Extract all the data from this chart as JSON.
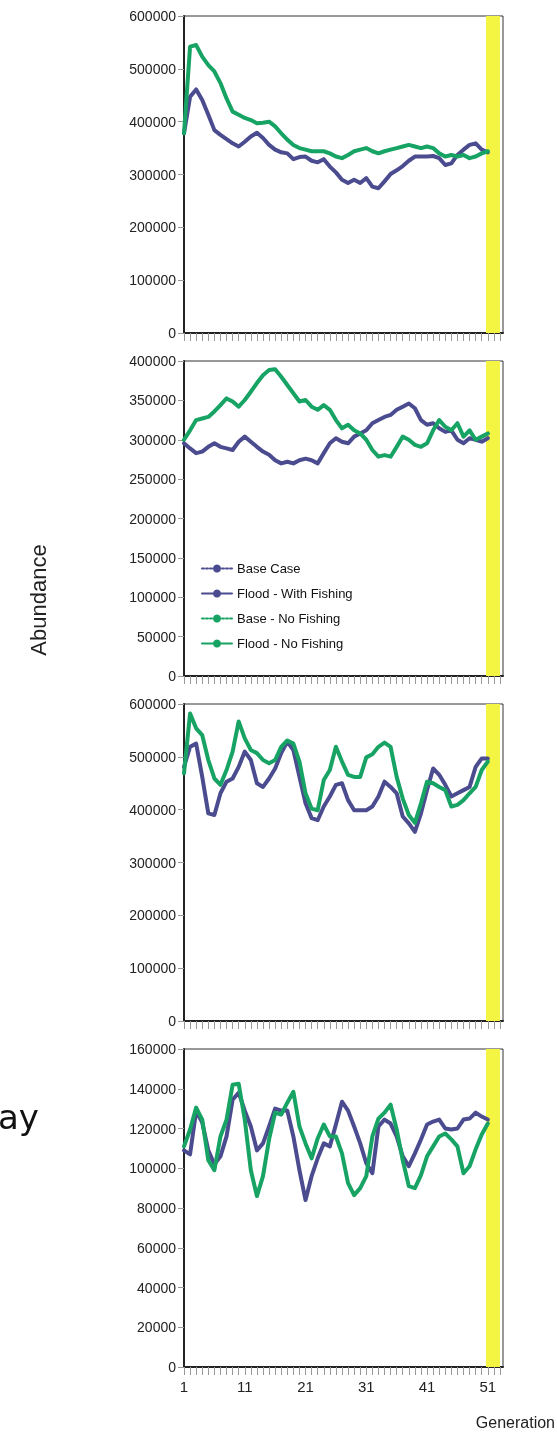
{
  "chart_data": [
    {
      "type": "line",
      "x": [
        1,
        2,
        3,
        4,
        5,
        6,
        7,
        8,
        9,
        10,
        11,
        12,
        13,
        14,
        15,
        16,
        17,
        18,
        19,
        20,
        21,
        22,
        23,
        24,
        25,
        26,
        27,
        28,
        29,
        30,
        31,
        32,
        33,
        34,
        35,
        36,
        37,
        38,
        39,
        40,
        41,
        42,
        43,
        44,
        45,
        46,
        47,
        48,
        49,
        50,
        51
      ],
      "series": [
        {
          "color": "#4b4b8f",
          "line_style": "solid",
          "values": [
            378000,
            447000,
            461000,
            441000,
            413000,
            384000,
            375000,
            367000,
            359000,
            353000,
            362000,
            372000,
            379000,
            369000,
            356000,
            347000,
            342000,
            340000,
            329000,
            333000,
            334000,
            326000,
            323000,
            329000,
            315000,
            304000,
            290000,
            284000,
            290000,
            284000,
            293000,
            277000,
            274000,
            287000,
            301000,
            308000,
            316000,
            326000,
            334000,
            334000,
            334000,
            335000,
            331000,
            318000,
            321000,
            337000,
            347000,
            356000,
            359000,
            347000,
            342000
          ]
        },
        {
          "color": "#17a363",
          "line_style": "solid",
          "values": [
            378000,
            542000,
            545000,
            523000,
            507000,
            495000,
            473000,
            444000,
            419000,
            413000,
            407000,
            403000,
            397000,
            398000,
            400000,
            391000,
            378000,
            366000,
            356000,
            350000,
            347000,
            344000,
            344000,
            344000,
            340000,
            334000,
            331000,
            337000,
            344000,
            347000,
            350000,
            344000,
            340000,
            344000,
            347000,
            350000,
            353000,
            356000,
            353000,
            350000,
            353000,
            350000,
            340000,
            334000,
            337000,
            334000,
            337000,
            331000,
            334000,
            340000,
            344000
          ]
        }
      ],
      "xlim": [
        1,
        53.5
      ],
      "xticks": [
        1,
        {
          "value": 2,
          "label": null
        },
        {
          "value": 3,
          "label": null
        },
        {
          "value": 4,
          "label": null
        },
        {
          "value": 5,
          "label": null
        },
        {
          "value": 6,
          "label": null
        },
        {
          "value": 7,
          "label": null
        },
        {
          "value": 8,
          "label": null
        },
        {
          "value": 9,
          "label": null
        },
        {
          "value": 10,
          "label": null
        },
        11,
        {
          "value": 12,
          "label": null
        },
        {
          "value": 13,
          "label": null
        },
        {
          "value": 14,
          "label": null
        },
        {
          "value": 15,
          "label": null
        },
        {
          "value": 16,
          "label": null
        },
        {
          "value": 17,
          "label": null
        },
        {
          "value": 18,
          "label": null
        },
        {
          "value": 19,
          "label": null
        },
        {
          "value": 20,
          "label": null
        },
        21,
        {
          "value": 22,
          "label": null
        },
        {
          "value": 23,
          "label": null
        },
        {
          "value": 24,
          "label": null
        },
        {
          "value": 25,
          "label": null
        },
        {
          "value": 26,
          "label": null
        },
        {
          "value": 27,
          "label": null
        },
        {
          "value": 28,
          "label": null
        },
        {
          "value": 29,
          "label": null
        },
        {
          "value": 30,
          "label": null
        },
        31,
        {
          "value": 32,
          "label": null
        },
        {
          "value": 33,
          "label": null
        },
        {
          "value": 34,
          "label": null
        },
        {
          "value": 35,
          "label": null
        },
        {
          "value": 36,
          "label": null
        },
        {
          "value": 37,
          "label": null
        },
        {
          "value": 38,
          "label": null
        },
        {
          "value": 39,
          "label": null
        },
        {
          "value": 40,
          "label": null
        },
        41,
        {
          "value": 42,
          "label": null
        },
        {
          "value": 43,
          "label": null
        },
        {
          "value": 44,
          "label": null
        },
        {
          "value": 45,
          "label": null
        },
        {
          "value": 46,
          "label": null
        },
        {
          "value": 47,
          "label": null
        },
        {
          "value": 48,
          "label": null
        },
        {
          "value": 49,
          "label": null
        },
        {
          "value": 50,
          "label": null
        },
        51,
        {
          "value": 52,
          "label": null
        },
        {
          "value": 53,
          "label": null
        }
      ],
      "ylim": [
        0,
        600000
      ],
      "yticks": [
        0,
        100000,
        200000,
        300000,
        400000,
        500000,
        600000
      ],
      "bands": [
        {
          "axis": "x",
          "from": 50.7,
          "to": 53,
          "color": "#f4f442"
        }
      ],
      "tick_labels": "y",
      "marker": "none",
      "grid": false,
      "legend": false
    },
    {
      "type": "line",
      "x": [
        1,
        2,
        3,
        4,
        5,
        6,
        7,
        8,
        9,
        10,
        11,
        12,
        13,
        14,
        15,
        16,
        17,
        18,
        19,
        20,
        21,
        22,
        23,
        24,
        25,
        26,
        27,
        28,
        29,
        30,
        31,
        32,
        33,
        34,
        35,
        36,
        37,
        38,
        39,
        40,
        41,
        42,
        43,
        44,
        45,
        46,
        47,
        48,
        49,
        50,
        51
      ],
      "series": [
        {
          "name": "Base Case",
          "color": "#4b4b8f",
          "line_style": "dotted",
          "values": [
            null,
            null,
            null,
            null,
            null,
            null,
            null,
            null,
            null,
            null,
            null,
            null,
            null,
            null,
            null,
            null,
            null,
            null,
            null,
            null,
            null,
            null,
            null,
            null,
            null,
            null,
            null,
            null,
            null,
            null,
            null,
            null,
            null,
            null,
            null,
            null,
            null,
            null,
            null,
            null,
            null,
            null,
            null,
            null,
            null,
            null,
            null,
            null,
            null,
            null,
            null
          ]
        },
        {
          "name": "Flood - With Fishing",
          "color": "#4b4b8f",
          "line_style": "solid",
          "values": [
            295500,
            289000,
            283000,
            285000,
            291000,
            295500,
            291000,
            289000,
            287000,
            297500,
            304000,
            297500,
            291000,
            285000,
            281000,
            274000,
            270000,
            272000,
            270000,
            274000,
            276000,
            274000,
            270000,
            283000,
            295500,
            302000,
            297500,
            295500,
            304000,
            308000,
            312000,
            321000,
            325000,
            329000,
            331500,
            338000,
            342000,
            346000,
            340000,
            325000,
            319000,
            321000,
            314500,
            310000,
            312000,
            300000,
            295500,
            302000,
            300000,
            297500,
            302000
          ]
        },
        {
          "name": "Base - No Fishing",
          "color": "#17a363",
          "line_style": "dotted",
          "values": [
            null,
            null,
            null,
            null,
            null,
            null,
            null,
            null,
            null,
            null,
            null,
            null,
            null,
            null,
            null,
            null,
            null,
            null,
            null,
            null,
            null,
            null,
            null,
            null,
            null,
            null,
            null,
            null,
            null,
            null,
            null,
            null,
            null,
            null,
            null,
            null,
            null,
            null,
            null,
            null,
            null,
            null,
            null,
            null,
            null,
            null,
            null,
            null,
            null,
            null,
            null
          ]
        },
        {
          "name": "Flood - No Fishing",
          "color": "#17a363",
          "line_style": "solid",
          "values": [
            300000,
            312000,
            325000,
            327000,
            329000,
            336000,
            344000,
            352500,
            348500,
            342000,
            350500,
            361000,
            372000,
            382000,
            388500,
            389500,
            380000,
            369500,
            359000,
            348500,
            350500,
            342000,
            338000,
            344000,
            338000,
            325000,
            314500,
            319000,
            312000,
            308000,
            300000,
            287000,
            278500,
            280500,
            278500,
            291000,
            304000,
            300000,
            293500,
            291000,
            295500,
            312000,
            325000,
            316500,
            312000,
            321000,
            304000,
            312000,
            300000,
            304000,
            308000
          ]
        }
      ],
      "xlim": [
        1,
        53.5
      ],
      "xticks": [
        1,
        {
          "value": 2,
          "label": null
        },
        {
          "value": 3,
          "label": null
        },
        {
          "value": 4,
          "label": null
        },
        {
          "value": 5,
          "label": null
        },
        {
          "value": 6,
          "label": null
        },
        {
          "value": 7,
          "label": null
        },
        {
          "value": 8,
          "label": null
        },
        {
          "value": 9,
          "label": null
        },
        {
          "value": 10,
          "label": null
        },
        11,
        {
          "value": 12,
          "label": null
        },
        {
          "value": 13,
          "label": null
        },
        {
          "value": 14,
          "label": null
        },
        {
          "value": 15,
          "label": null
        },
        {
          "value": 16,
          "label": null
        },
        {
          "value": 17,
          "label": null
        },
        {
          "value": 18,
          "label": null
        },
        {
          "value": 19,
          "label": null
        },
        {
          "value": 20,
          "label": null
        },
        21,
        {
          "value": 22,
          "label": null
        },
        {
          "value": 23,
          "label": null
        },
        {
          "value": 24,
          "label": null
        },
        {
          "value": 25,
          "label": null
        },
        {
          "value": 26,
          "label": null
        },
        {
          "value": 27,
          "label": null
        },
        {
          "value": 28,
          "label": null
        },
        {
          "value": 29,
          "label": null
        },
        {
          "value": 30,
          "label": null
        },
        31,
        {
          "value": 32,
          "label": null
        },
        {
          "value": 33,
          "label": null
        },
        {
          "value": 34,
          "label": null
        },
        {
          "value": 35,
          "label": null
        },
        {
          "value": 36,
          "label": null
        },
        {
          "value": 37,
          "label": null
        },
        {
          "value": 38,
          "label": null
        },
        {
          "value": 39,
          "label": null
        },
        {
          "value": 40,
          "label": null
        },
        41,
        {
          "value": 42,
          "label": null
        },
        {
          "value": 43,
          "label": null
        },
        {
          "value": 44,
          "label": null
        },
        {
          "value": 45,
          "label": null
        },
        {
          "value": 46,
          "label": null
        },
        {
          "value": 47,
          "label": null
        },
        {
          "value": 48,
          "label": null
        },
        {
          "value": 49,
          "label": null
        },
        {
          "value": 50,
          "label": null
        },
        51,
        {
          "value": 52,
          "label": null
        },
        {
          "value": 53,
          "label": null
        }
      ],
      "ylim": [
        0,
        400000
      ],
      "yticks": [
        0,
        50000,
        100000,
        150000,
        200000,
        250000,
        300000,
        350000,
        400000
      ],
      "ylabel": "Abundance",
      "bands": [
        {
          "axis": "x",
          "from": 50.7,
          "to": 53,
          "color": "#f4f442"
        }
      ],
      "tick_labels": "y",
      "marker": "none",
      "grid": false,
      "legend": "bottom left"
    },
    {
      "type": "line",
      "x": [
        1,
        2,
        3,
        4,
        5,
        6,
        7,
        8,
        9,
        10,
        11,
        12,
        13,
        14,
        15,
        16,
        17,
        18,
        19,
        20,
        21,
        22,
        23,
        24,
        25,
        26,
        27,
        28,
        29,
        30,
        31,
        32,
        33,
        34,
        35,
        36,
        37,
        38,
        39,
        40,
        41,
        42,
        43,
        44,
        45,
        46,
        47,
        48,
        49,
        50,
        51
      ],
      "series": [
        {
          "color": "#4b4b8f",
          "line_style": "solid",
          "values": [
            481000,
            519000,
            525000,
            462000,
            393000,
            390000,
            431000,
            453000,
            459000,
            481000,
            510000,
            494000,
            450000,
            443000,
            459000,
            478000,
            507000,
            529000,
            513000,
            462000,
            412000,
            384000,
            380000,
            406000,
            425000,
            447000,
            450000,
            418000,
            399000,
            399000,
            399000,
            406000,
            425000,
            453000,
            443000,
            431000,
            387000,
            374000,
            358000,
            393000,
            437000,
            478000,
            466000,
            447000,
            425000,
            431000,
            437000,
            443000,
            481000,
            497000,
            497000
          ]
        },
        {
          "color": "#17a363",
          "line_style": "solid",
          "values": [
            469000,
            582000,
            554000,
            541000,
            494000,
            459000,
            447000,
            475000,
            510000,
            567000,
            535000,
            513000,
            507000,
            494000,
            488000,
            494000,
            519000,
            531000,
            525000,
            491000,
            431000,
            402000,
            399000,
            456000,
            475000,
            519000,
            491000,
            466000,
            462000,
            462000,
            499000,
            505000,
            519000,
            527000,
            519000,
            462000,
            421000,
            390000,
            375000,
            412000,
            453000,
            450000,
            443000,
            437000,
            406000,
            409000,
            418000,
            431000,
            443000,
            475000,
            491000
          ]
        }
      ],
      "xlim": [
        1,
        53.5
      ],
      "xticks": [
        1,
        {
          "value": 2,
          "label": null
        },
        {
          "value": 3,
          "label": null
        },
        {
          "value": 4,
          "label": null
        },
        {
          "value": 5,
          "label": null
        },
        {
          "value": 6,
          "label": null
        },
        {
          "value": 7,
          "label": null
        },
        {
          "value": 8,
          "label": null
        },
        {
          "value": 9,
          "label": null
        },
        {
          "value": 10,
          "label": null
        },
        11,
        {
          "value": 12,
          "label": null
        },
        {
          "value": 13,
          "label": null
        },
        {
          "value": 14,
          "label": null
        },
        {
          "value": 15,
          "label": null
        },
        {
          "value": 16,
          "label": null
        },
        {
          "value": 17,
          "label": null
        },
        {
          "value": 18,
          "label": null
        },
        {
          "value": 19,
          "label": null
        },
        {
          "value": 20,
          "label": null
        },
        21,
        {
          "value": 22,
          "label": null
        },
        {
          "value": 23,
          "label": null
        },
        {
          "value": 24,
          "label": null
        },
        {
          "value": 25,
          "label": null
        },
        {
          "value": 26,
          "label": null
        },
        {
          "value": 27,
          "label": null
        },
        {
          "value": 28,
          "label": null
        },
        {
          "value": 29,
          "label": null
        },
        {
          "value": 30,
          "label": null
        },
        31,
        {
          "value": 32,
          "label": null
        },
        {
          "value": 33,
          "label": null
        },
        {
          "value": 34,
          "label": null
        },
        {
          "value": 35,
          "label": null
        },
        {
          "value": 36,
          "label": null
        },
        {
          "value": 37,
          "label": null
        },
        {
          "value": 38,
          "label": null
        },
        {
          "value": 39,
          "label": null
        },
        {
          "value": 40,
          "label": null
        },
        41,
        {
          "value": 42,
          "label": null
        },
        {
          "value": 43,
          "label": null
        },
        {
          "value": 44,
          "label": null
        },
        {
          "value": 45,
          "label": null
        },
        {
          "value": 46,
          "label": null
        },
        {
          "value": 47,
          "label": null
        },
        {
          "value": 48,
          "label": null
        },
        {
          "value": 49,
          "label": null
        },
        {
          "value": 50,
          "label": null
        },
        51,
        {
          "value": 52,
          "label": null
        },
        {
          "value": 53,
          "label": null
        }
      ],
      "ylim": [
        0,
        600000
      ],
      "yticks": [
        0,
        100000,
        200000,
        300000,
        400000,
        500000,
        600000
      ],
      "bands": [
        {
          "axis": "x",
          "from": 50.7,
          "to": 53,
          "color": "#f4f442"
        }
      ],
      "tick_labels": "y",
      "marker": "none",
      "grid": false,
      "legend": false
    },
    {
      "type": "line",
      "x": [
        1,
        2,
        3,
        4,
        5,
        6,
        7,
        8,
        9,
        10,
        11,
        12,
        13,
        14,
        15,
        16,
        17,
        18,
        19,
        20,
        21,
        22,
        23,
        24,
        25,
        26,
        27,
        28,
        29,
        30,
        31,
        32,
        33,
        34,
        35,
        36,
        37,
        38,
        39,
        40,
        41,
        42,
        43,
        44,
        45,
        46,
        47,
        48,
        49,
        50,
        51
      ],
      "series": [
        {
          "color": "#4b4b8f",
          "line_style": "solid",
          "values": [
            109000,
            107000,
            129000,
            123000,
            109000,
            102000,
            106000,
            116000,
            134500,
            138000,
            129000,
            121000,
            109000,
            112500,
            121000,
            130000,
            129000,
            129000,
            116000,
            99000,
            84000,
            96000,
            105000,
            112500,
            111000,
            122000,
            133500,
            129000,
            121000,
            112500,
            102500,
            97500,
            121000,
            124500,
            122500,
            116000,
            106000,
            101000,
            107500,
            114500,
            122000,
            123500,
            124500,
            120000,
            119500,
            120000,
            124500,
            125000,
            128000,
            126000,
            124500
          ]
        },
        {
          "color": "#17a363",
          "line_style": "solid",
          "values": [
            111000,
            119500,
            130500,
            124500,
            104000,
            99000,
            116000,
            124500,
            142000,
            142500,
            124500,
            99000,
            86000,
            96000,
            114500,
            128000,
            127000,
            133000,
            138500,
            121000,
            112500,
            105000,
            115000,
            122000,
            116000,
            116000,
            107500,
            92500,
            86500,
            90000,
            96000,
            116000,
            125000,
            128000,
            132000,
            119500,
            104000,
            91000,
            90000,
            96500,
            106000,
            111000,
            116000,
            117500,
            114500,
            111000,
            97500,
            101000,
            109500,
            117000,
            122500
          ]
        }
      ],
      "xlim": [
        1,
        53.5
      ],
      "xticks": [
        1,
        {
          "value": 2,
          "label": null
        },
        {
          "value": 3,
          "label": null
        },
        {
          "value": 4,
          "label": null
        },
        {
          "value": 5,
          "label": null
        },
        {
          "value": 6,
          "label": null
        },
        {
          "value": 7,
          "label": null
        },
        {
          "value": 8,
          "label": null
        },
        {
          "value": 9,
          "label": null
        },
        {
          "value": 10,
          "label": null
        },
        11,
        {
          "value": 12,
          "label": null
        },
        {
          "value": 13,
          "label": null
        },
        {
          "value": 14,
          "label": null
        },
        {
          "value": 15,
          "label": null
        },
        {
          "value": 16,
          "label": null
        },
        {
          "value": 17,
          "label": null
        },
        {
          "value": 18,
          "label": null
        },
        {
          "value": 19,
          "label": null
        },
        {
          "value": 20,
          "label": null
        },
        21,
        {
          "value": 22,
          "label": null
        },
        {
          "value": 23,
          "label": null
        },
        {
          "value": 24,
          "label": null
        },
        {
          "value": 25,
          "label": null
        },
        {
          "value": 26,
          "label": null
        },
        {
          "value": 27,
          "label": null
        },
        {
          "value": 28,
          "label": null
        },
        {
          "value": 29,
          "label": null
        },
        {
          "value": 30,
          "label": null
        },
        31,
        {
          "value": 32,
          "label": null
        },
        {
          "value": 33,
          "label": null
        },
        {
          "value": 34,
          "label": null
        },
        {
          "value": 35,
          "label": null
        },
        {
          "value": 36,
          "label": null
        },
        {
          "value": 37,
          "label": null
        },
        {
          "value": 38,
          "label": null
        },
        {
          "value": 39,
          "label": null
        },
        {
          "value": 40,
          "label": null
        },
        41,
        {
          "value": 42,
          "label": null
        },
        {
          "value": 43,
          "label": null
        },
        {
          "value": 44,
          "label": null
        },
        {
          "value": 45,
          "label": null
        },
        {
          "value": 46,
          "label": null
        },
        {
          "value": 47,
          "label": null
        },
        {
          "value": 48,
          "label": null
        },
        {
          "value": 49,
          "label": null
        },
        {
          "value": 50,
          "label": null
        },
        51,
        {
          "value": 52,
          "label": null
        },
        {
          "value": 53,
          "label": null
        }
      ],
      "ylim": [
        0,
        160000
      ],
      "yticks": [
        0,
        20000,
        40000,
        60000,
        80000,
        100000,
        120000,
        140000,
        160000
      ],
      "xlabel": "Generation",
      "annotations": [
        "ay"
      ],
      "bands": [
        {
          "axis": "x",
          "from": 50.7,
          "to": 53,
          "color": "#f4f442"
        }
      ],
      "marker": "none",
      "grid": false,
      "legend": false
    }
  ]
}
